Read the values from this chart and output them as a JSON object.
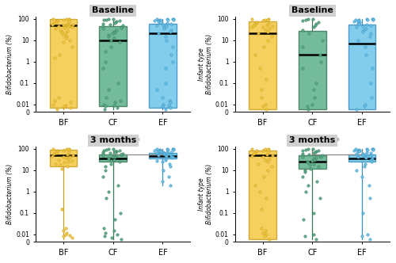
{
  "colors": {
    "BF": "#F5C842",
    "CF": "#5BAF8A",
    "EF": "#6BC5E8"
  },
  "edge_colors": {
    "BF": "#C8A020",
    "CF": "#3A7A5A",
    "EF": "#3A90C0"
  },
  "groups": [
    "BF",
    "CF",
    "EF"
  ],
  "background_color": "#ffffff",
  "title_bg": "#D0D0D0",
  "panel0": {
    "title": "Baseline",
    "ylabel": "Bifidobacterium (%)",
    "star": false,
    "BF": {
      "q1": 0.007,
      "median": 50,
      "q3": 100,
      "whisker_low": 0.006,
      "whisker_high": 100,
      "points_above": [
        100,
        100,
        100,
        90,
        85,
        80,
        80,
        75,
        70,
        65,
        60,
        55,
        55,
        50,
        50,
        50,
        48,
        45,
        42,
        40,
        38,
        35,
        30,
        28,
        25,
        22,
        20,
        17,
        15,
        12,
        10,
        8,
        5,
        2
      ],
      "points_below": [
        1.5,
        0.02,
        0.015,
        0.012,
        0.01,
        0.009,
        0.008,
        0.007,
        0.006
      ]
    },
    "CF": {
      "q1": 0.008,
      "median": 10,
      "q3": 45,
      "whisker_low": 0.006,
      "whisker_high": 100,
      "points_above": [
        100,
        95,
        90,
        85,
        80,
        75,
        70,
        65,
        60,
        55,
        50,
        45,
        40,
        38,
        35,
        30,
        25,
        22,
        20,
        18,
        15,
        12,
        10,
        8,
        5,
        3,
        1,
        0.5,
        0.1,
        0.05
      ],
      "points_below": [
        0.02,
        0.015,
        0.012,
        0.01,
        0.009,
        0.008,
        0.007,
        0.006
      ]
    },
    "EF": {
      "q1": 0.007,
      "median": 20,
      "q3": 60,
      "whisker_low": 0.006,
      "whisker_high": 100,
      "points_above": [
        100,
        100,
        100,
        95,
        90,
        88,
        85,
        82,
        80,
        78,
        75,
        70,
        65,
        60,
        55,
        50,
        45,
        40,
        35,
        30,
        25,
        20,
        15,
        10,
        5,
        2,
        1,
        0.5,
        0.1,
        0.05
      ],
      "points_below": [
        0.02,
        0.015,
        0.012,
        0.01,
        0.009,
        0.008,
        0.007,
        0.006
      ]
    }
  },
  "panel1": {
    "title": "Baseline",
    "ylabel": "Infant type\nBifidobacterium (%)",
    "star": false,
    "BF": {
      "q1": 0.006,
      "median": 20,
      "q3": 75,
      "whisker_low": 0.006,
      "whisker_high": 100,
      "points_above": [
        100,
        95,
        90,
        85,
        80,
        70,
        65,
        60,
        55,
        50,
        48,
        45,
        42,
        40,
        35,
        30,
        25,
        20,
        15,
        10,
        5,
        2
      ],
      "points_below": [
        0.5,
        0.15,
        0.05,
        0.02,
        0.01,
        0.008,
        0.006
      ]
    },
    "CF": {
      "q1": 0.006,
      "median": 2,
      "q3": 28,
      "whisker_low": 0.006,
      "whisker_high": 100,
      "points_above": [
        100,
        95,
        90,
        80,
        70,
        60,
        50,
        40,
        30,
        20,
        10,
        5,
        2,
        1,
        0.5,
        0.1,
        0.05
      ],
      "points_below": [
        0.02,
        0.01,
        0.008,
        0.006
      ]
    },
    "EF": {
      "q1": 0.006,
      "median": 7,
      "q3": 55,
      "whisker_low": 0.006,
      "whisker_high": 100,
      "points_above": [
        100,
        100,
        95,
        92,
        90,
        88,
        85,
        80,
        75,
        70,
        65,
        60,
        55,
        50,
        45,
        40,
        35,
        30,
        25,
        20,
        15,
        10,
        5,
        2,
        0.5,
        0.1
      ],
      "points_below": [
        0.02,
        0.01,
        0.008,
        0.006
      ]
    }
  },
  "panel2": {
    "title": "3 months",
    "ylabel": "Bifidobacterium (%)",
    "star": true,
    "BF": {
      "q1": 15,
      "median": 50,
      "q3": 90,
      "whisker_low": 0.006,
      "whisker_high": 100,
      "points_above": [
        100,
        100,
        95,
        90,
        85,
        80,
        75,
        70,
        65,
        60,
        55,
        50,
        45,
        42,
        40,
        38,
        35,
        30,
        28,
        25,
        22,
        20,
        18,
        15,
        12
      ],
      "points_below": [
        0.15,
        0.02,
        0.015,
        0.012,
        0.01,
        0.009,
        0.008,
        0.007
      ]
    },
    "CF": {
      "q1": 25,
      "median": 35,
      "q3": 55,
      "whisker_low": 0.006,
      "whisker_high": 100,
      "points_above": [
        100,
        95,
        90,
        85,
        80,
        78,
        75,
        72,
        70,
        65,
        60,
        58,
        55,
        52,
        50,
        48,
        45,
        42,
        40,
        38,
        35,
        30,
        28,
        25,
        20,
        15,
        10,
        5,
        2,
        1,
        0.5,
        0.1,
        0.05
      ],
      "points_below": [
        0.02,
        0.015,
        0.012,
        0.01,
        0.008,
        0.007,
        0.006
      ]
    },
    "EF": {
      "q1": 35,
      "median": 45,
      "q3": 65,
      "whisker_low": 2,
      "whisker_high": 100,
      "points_above": [
        100,
        100,
        98,
        95,
        92,
        90,
        88,
        85,
        82,
        80,
        78,
        75,
        72,
        70,
        68,
        65,
        62,
        60,
        58,
        55,
        52,
        50,
        48,
        45,
        42,
        40,
        38,
        35,
        30,
        28,
        25,
        20,
        15,
        10,
        5,
        3,
        2
      ],
      "points_below": []
    }
  },
  "panel3": {
    "title": "3 months",
    "ylabel": "Infant type\nBifidobacterium (%)",
    "star": true,
    "BF": {
      "q1": 0.006,
      "median": 50,
      "q3": 80,
      "whisker_low": 0.006,
      "whisker_high": 100,
      "points_above": [
        100,
        100,
        95,
        90,
        85,
        80,
        75,
        70,
        65,
        60,
        55,
        50,
        45,
        40,
        35,
        30,
        25,
        20,
        15,
        10,
        5,
        2,
        1,
        0.5
      ],
      "points_below": [
        0.15,
        0.02,
        0.015,
        0.012,
        0.01,
        0.008,
        0.006
      ]
    },
    "CF": {
      "q1": 12,
      "median": 25,
      "q3": 50,
      "whisker_low": 0.006,
      "whisker_high": 100,
      "points_above": [
        100,
        95,
        90,
        85,
        80,
        75,
        70,
        65,
        60,
        55,
        50,
        48,
        45,
        42,
        40,
        38,
        35,
        30,
        28,
        25,
        22,
        20,
        18,
        15,
        12,
        10,
        8,
        5,
        3,
        2,
        1,
        0.5,
        0.1,
        0.05
      ],
      "points_below": [
        0.01,
        0.008,
        0.006
      ]
    },
    "EF": {
      "q1": 25,
      "median": 35,
      "q3": 55,
      "whisker_low": 0.006,
      "whisker_high": 100,
      "points_above": [
        100,
        100,
        98,
        95,
        92,
        90,
        88,
        85,
        82,
        80,
        78,
        75,
        70,
        65,
        60,
        58,
        55,
        52,
        50,
        48,
        45,
        42,
        40,
        38,
        35,
        30,
        25,
        20,
        15,
        10,
        5,
        2,
        0.5,
        0.1
      ],
      "points_below": [
        0.01,
        0.008,
        0.006
      ]
    }
  }
}
